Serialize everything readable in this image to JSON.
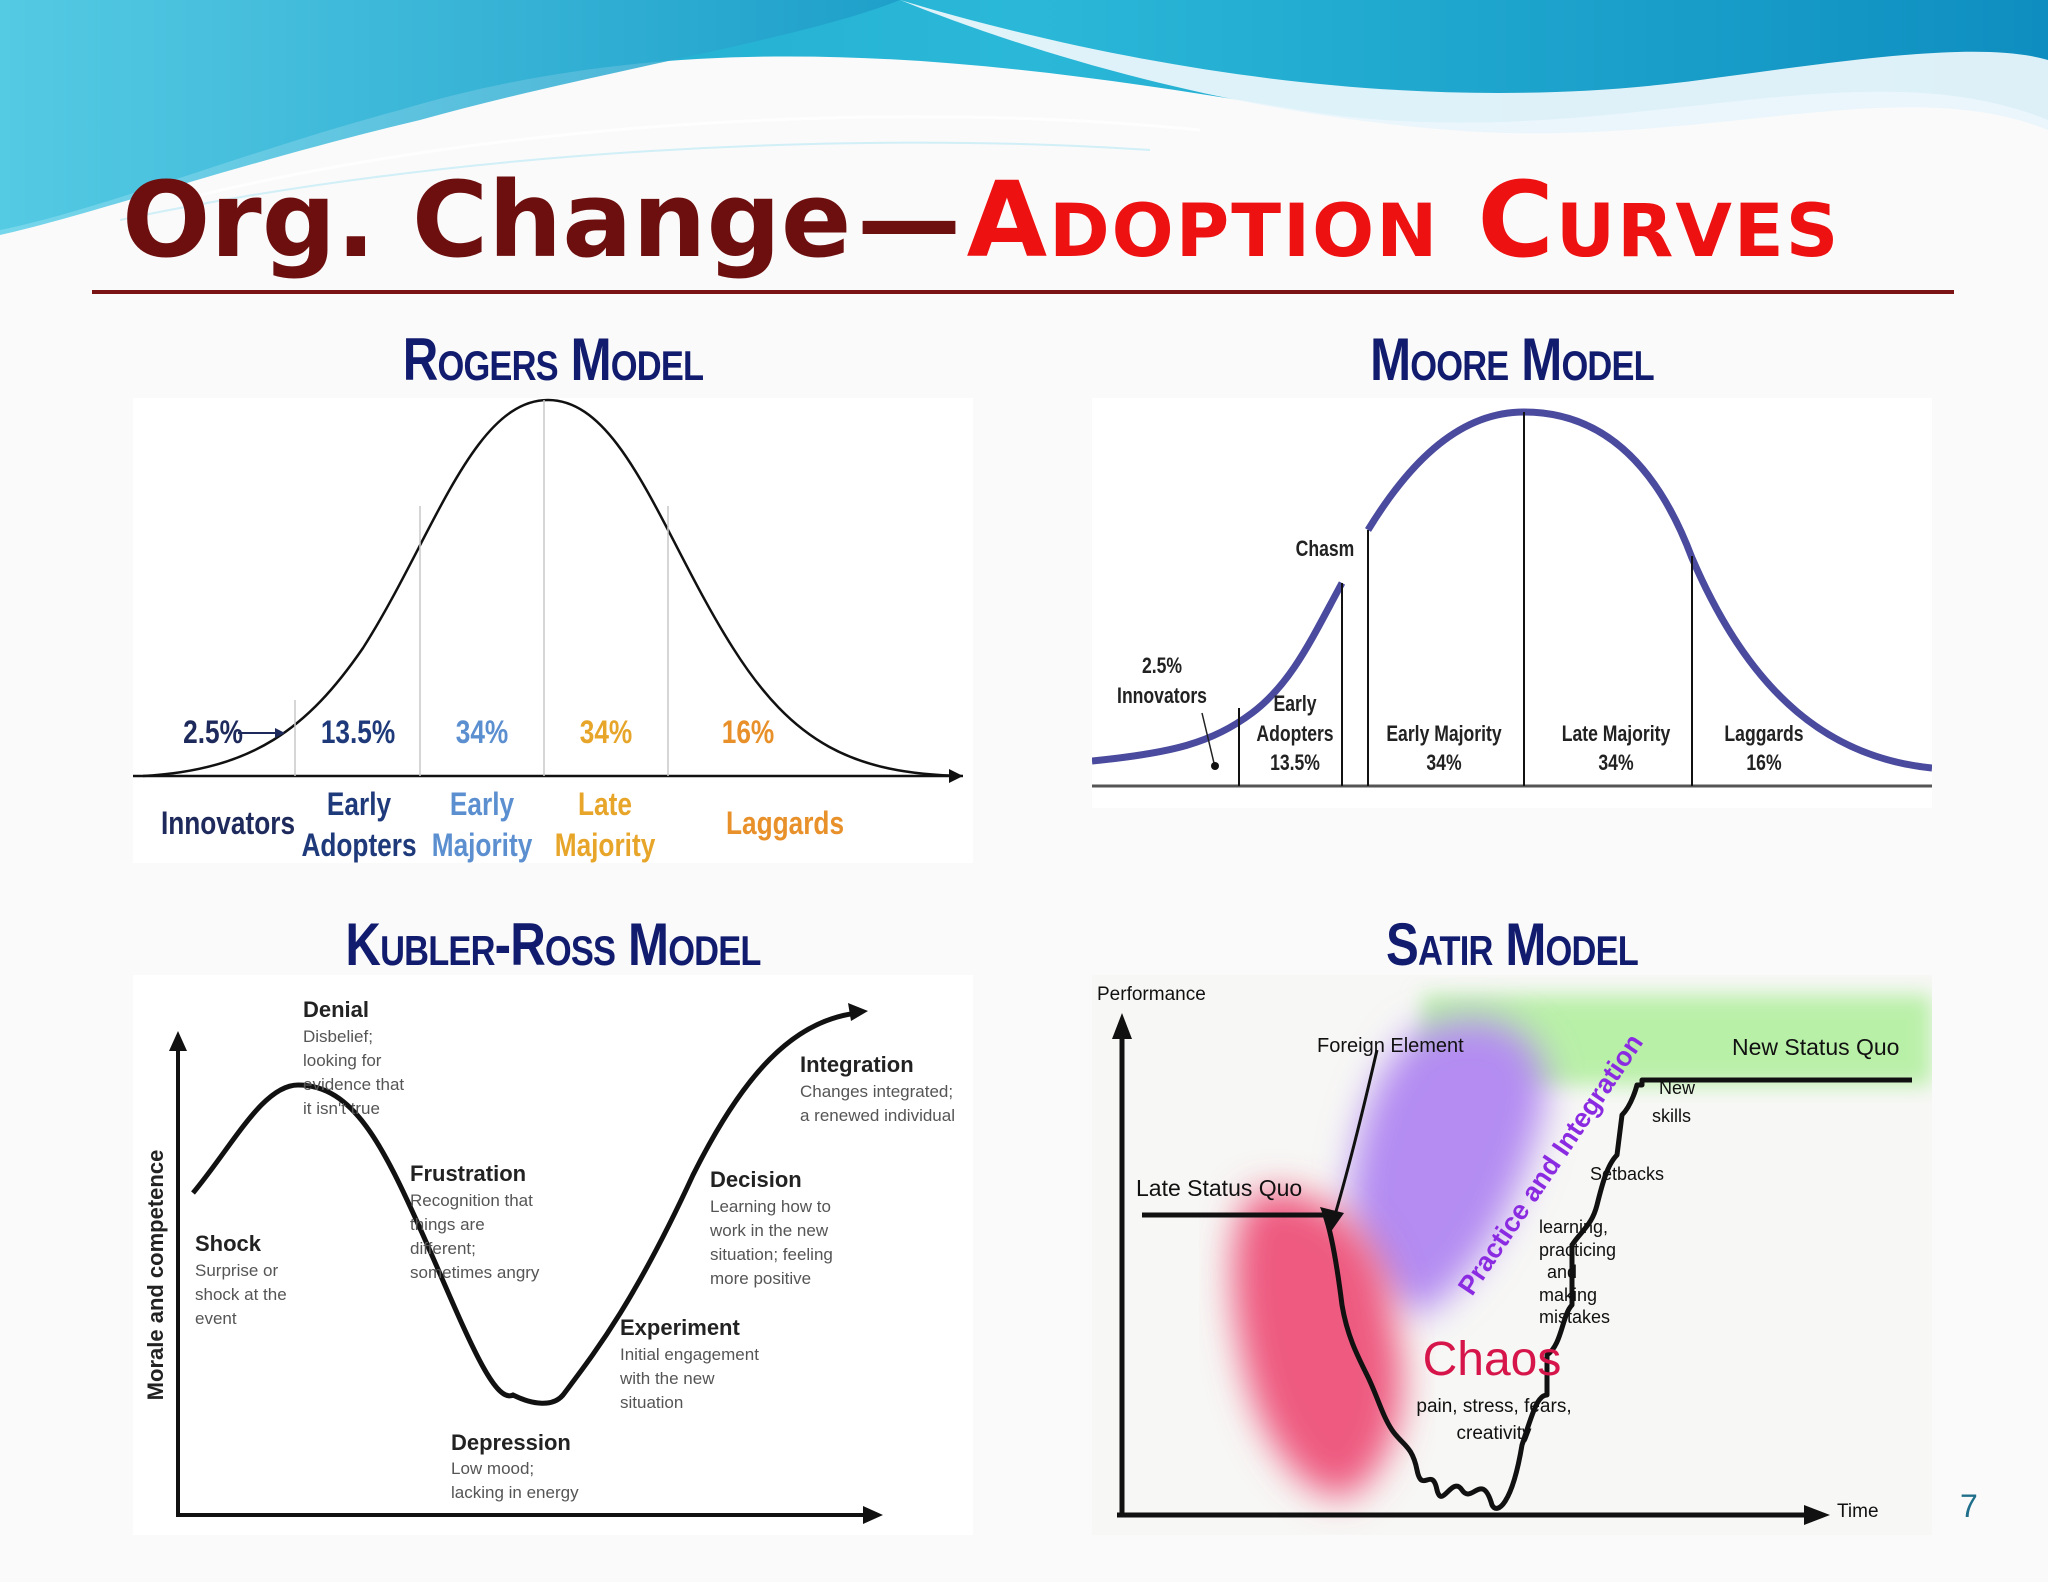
{
  "slide": {
    "title_main": "Org. Change",
    "title_dash": "—",
    "title_accent": "Adoption Curves",
    "page_number": "7",
    "colors": {
      "title_dark": "#6e0f0f",
      "title_accent": "#ee1111",
      "panel_title": "#121c6e"
    }
  },
  "rogers": {
    "heading": "Rogers Model",
    "segments": [
      {
        "percent": "2.5%",
        "label1": "Innovators",
        "label2": "",
        "color": "#1f2a5c"
      },
      {
        "percent": "13.5%",
        "label1": "Early",
        "label2": "Adopters",
        "color": "#1f3a7a"
      },
      {
        "percent": "34%",
        "label1": "Early",
        "label2": "Majority",
        "color": "#5b8fd0"
      },
      {
        "percent": "34%",
        "label1": "Late",
        "label2": "Majority",
        "color": "#e7a52a"
      },
      {
        "percent": "16%",
        "label1": "Laggards",
        "label2": "",
        "color": "#e8902a"
      }
    ]
  },
  "moore": {
    "heading": "Moore Model",
    "chasm": "Chasm",
    "innovators_pct": "2.5%",
    "innovators": "Innovators",
    "segments": [
      {
        "label1": "Early",
        "label2": "Adopters",
        "pct": "13.5%"
      },
      {
        "label1": "Early Majority",
        "label2": "",
        "pct": "34%"
      },
      {
        "label1": "Late Majority",
        "label2": "",
        "pct": "34%"
      },
      {
        "label1": "Laggards",
        "label2": "",
        "pct": "16%"
      }
    ],
    "curve_color": "#4a4a9e"
  },
  "kubler": {
    "heading": "Kubler-Ross Model",
    "y_axis": "Morale and competence",
    "stages": [
      {
        "name": "Denial",
        "lines": [
          "Disbelief;",
          "looking for",
          "evidence that",
          "it isn't true"
        ]
      },
      {
        "name": "Shock",
        "lines": [
          "Surprise or",
          "shock at the",
          "event"
        ]
      },
      {
        "name": "Frustration",
        "lines": [
          "Recognition that",
          "things are",
          "different;",
          "sometimes angry"
        ]
      },
      {
        "name": "Depression",
        "lines": [
          "Low mood;",
          "lacking in energy"
        ]
      },
      {
        "name": "Experiment",
        "lines": [
          "Initial engagement",
          "with the new",
          "situation"
        ]
      },
      {
        "name": "Decision",
        "lines": [
          "Learning how to",
          "work in the new",
          "situation; feeling",
          "more positive"
        ]
      },
      {
        "name": "Integration",
        "lines": [
          "Changes integrated;",
          "a renewed individual"
        ]
      }
    ]
  },
  "satir": {
    "heading": "Satir Model",
    "y_axis": "Performance",
    "x_axis": "Time",
    "foreign_element": "Foreign Element",
    "late_status_quo": "Late Status Quo",
    "new_status_quo": "New Status Quo",
    "practice": "Practice and Integration",
    "new_skills": [
      "New",
      "skills"
    ],
    "setbacks": "Setbacks",
    "learning": [
      "learning,",
      "practicing",
      "and",
      "making",
      "mistakes"
    ],
    "chaos": "Chaos",
    "chaos_sub": [
      "pain, stress, fears,",
      "creativity"
    ]
  }
}
